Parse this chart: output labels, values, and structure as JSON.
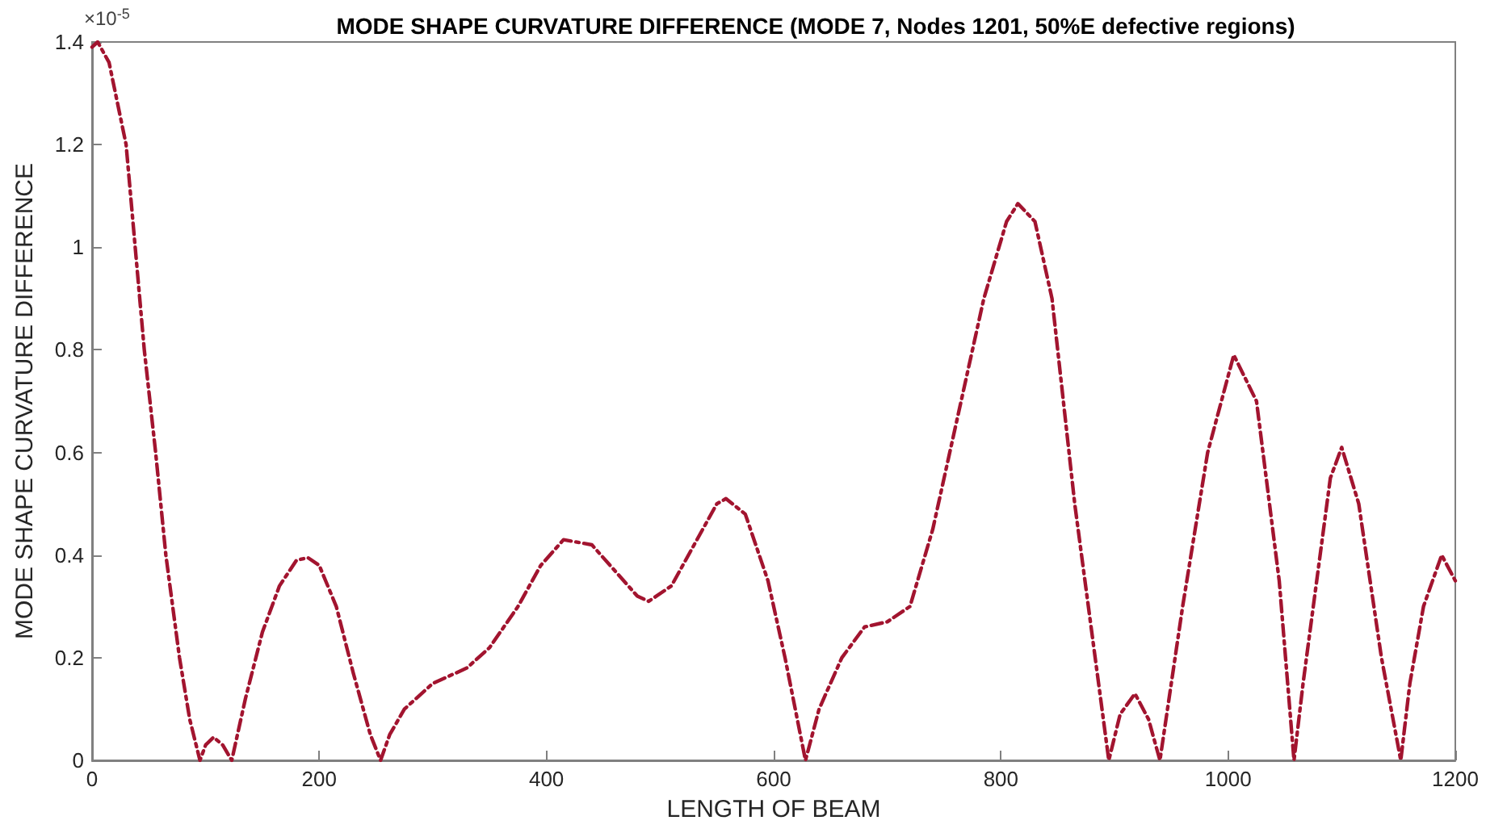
{
  "chart_data": {
    "type": "line",
    "title": "MODE SHAPE CURVATURE DIFFERENCE (MODE 7, Nodes 1201, 50%E defective regions)",
    "xlabel": "LENGTH OF BEAM",
    "ylabel": "MODE SHAPE CURVATURE DIFFERENCE",
    "annotations": [
      "×10$^{-5}$"
    ],
    "x": [
      0,
      5,
      15,
      30,
      38,
      46,
      56,
      65,
      77,
      86,
      95,
      100,
      107,
      115,
      123,
      135,
      150,
      165,
      180,
      190,
      200,
      215,
      230,
      245,
      254,
      262,
      275,
      300,
      330,
      350,
      375,
      395,
      415,
      440,
      460,
      480,
      490,
      510,
      530,
      550,
      558,
      575,
      595,
      610,
      628,
      640,
      660,
      680,
      700,
      720,
      740,
      765,
      785,
      805,
      815,
      830,
      845,
      865,
      883,
      895,
      905,
      918,
      930,
      940,
      950,
      960,
      982,
      1005,
      1025,
      1045,
      1058,
      1066,
      1075,
      1090,
      1100,
      1115,
      1135,
      1152,
      1160,
      1172,
      1188,
      1200
    ],
    "series": [
      {
        "color": "#a2142f",
        "values": [
          1.39,
          1.4,
          1.36,
          1.2,
          1.0,
          0.8,
          0.6,
          0.4,
          0.2,
          0.08,
          0,
          0.03,
          0.045,
          0.03,
          0,
          0.12,
          0.25,
          0.34,
          0.39,
          0.395,
          0.38,
          0.3,
          0.17,
          0.05,
          0,
          0.05,
          0.1,
          0.15,
          0.18,
          0.22,
          0.3,
          0.38,
          0.43,
          0.42,
          0.37,
          0.32,
          0.31,
          0.34,
          0.42,
          0.5,
          0.51,
          0.48,
          0.35,
          0.2,
          0,
          0.1,
          0.2,
          0.26,
          0.27,
          0.3,
          0.45,
          0.7,
          0.9,
          1.05,
          1.085,
          1.05,
          0.9,
          0.5,
          0.2,
          0,
          0.09,
          0.13,
          0.08,
          0,
          0.15,
          0.3,
          0.6,
          0.79,
          0.7,
          0.35,
          0,
          0.15,
          0.3,
          0.55,
          0.61,
          0.5,
          0.2,
          0,
          0.15,
          0.3,
          0.4,
          0.35
        ]
      }
    ],
    "xlim": [
      0,
      1200
    ],
    "xticks": [
      0,
      200,
      400,
      600,
      800,
      1000,
      1200
    ],
    "ylim": [
      0,
      1.4
    ],
    "yticks": [
      0,
      0.2,
      0.4,
      0.6,
      0.8,
      1,
      1.2,
      1.4
    ],
    "grid": false,
    "marker": "none",
    "line_style": "dashed"
  }
}
